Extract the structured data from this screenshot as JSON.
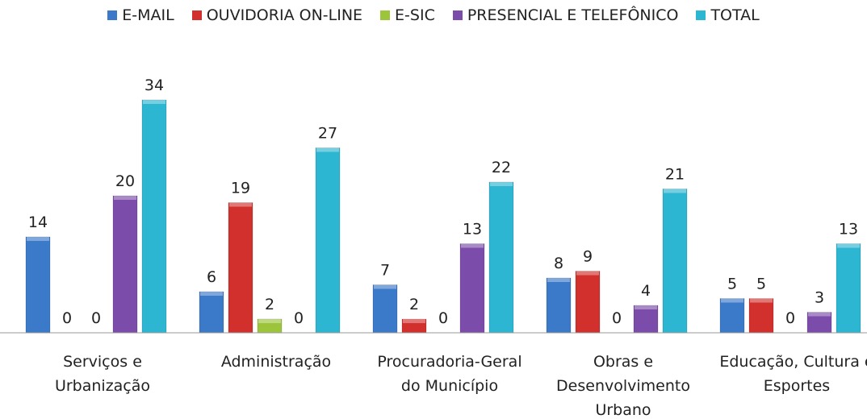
{
  "chart_data": {
    "type": "bar",
    "categories": [
      "Serviços e Urbanização",
      "Administração",
      "Procuradoria-Geral do Município",
      "Obras e Desenvolvimento Urbano",
      "Educação, Cultura e Esportes"
    ],
    "series": [
      {
        "name": "E-MAIL",
        "color": "#3b79c9",
        "values": [
          14,
          6,
          7,
          8,
          5
        ]
      },
      {
        "name": "OUVIDORIA ON-LINE",
        "color": "#d2302c",
        "values": [
          0,
          19,
          2,
          9,
          5
        ]
      },
      {
        "name": "E-SIC",
        "color": "#9cc53c",
        "values": [
          0,
          2,
          0,
          0,
          0
        ]
      },
      {
        "name": "PRESENCIAL E TELEFÔNICO",
        "color": "#7b4ca9",
        "values": [
          20,
          0,
          13,
          4,
          3
        ]
      },
      {
        "name": "TOTAL",
        "color": "#2cb6d2",
        "values": [
          34,
          27,
          22,
          21,
          13
        ]
      }
    ],
    "legend": "top"
  }
}
